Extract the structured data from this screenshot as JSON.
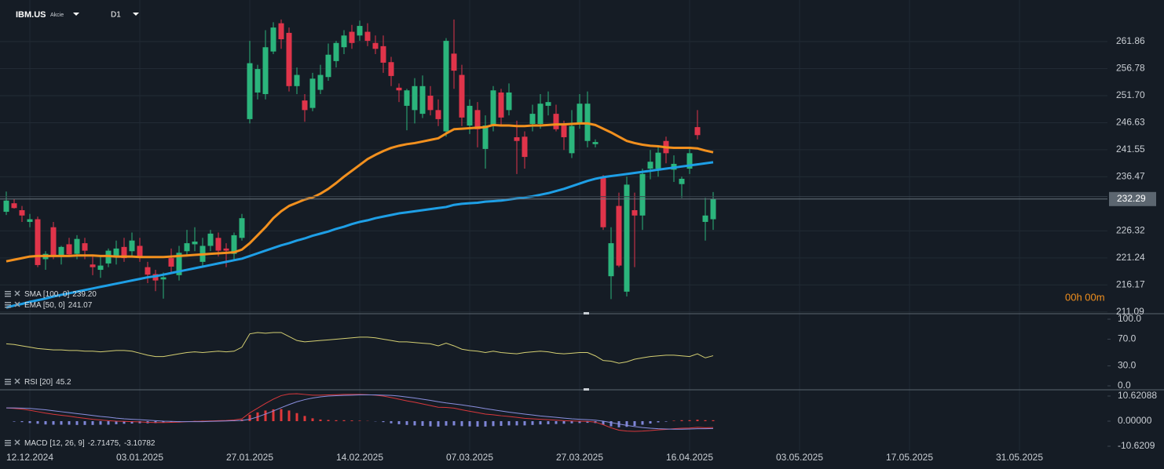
{
  "header": {
    "symbol": "IBM.US",
    "asset_type": "Akcie",
    "timeframe": "D1"
  },
  "countdown": "00h 00m",
  "chart_data": [
    {
      "type": "candlestick",
      "ylim": [
        210.76,
        269.67
      ],
      "yticks": [
        {
          "value": 211.09,
          "label": "211.09"
        },
        {
          "value": 216.17,
          "label": "216.17"
        },
        {
          "value": 221.24,
          "label": "221.24"
        },
        {
          "value": 226.32,
          "label": "226.32"
        },
        {
          "value": 236.47,
          "label": "236.47"
        },
        {
          "value": 241.55,
          "label": "241.55"
        },
        {
          "value": 246.63,
          "label": "246.63"
        },
        {
          "value": 251.7,
          "label": "251.70"
        },
        {
          "value": 256.78,
          "label": "256.78"
        },
        {
          "value": 261.86,
          "label": "261.86"
        }
      ],
      "grid": true,
      "up_color": "#2bb57c",
      "down_color": "#e0344a",
      "open": [
        229.9,
        231.5,
        230.2,
        228.0,
        228.5,
        221.0,
        227.0,
        221.5,
        223.8,
        222.0,
        224.0,
        220.0,
        219.0,
        220.2,
        221.5,
        223.3,
        222.5,
        223.5,
        219.5,
        218.2,
        217.2,
        221.2,
        218.0,
        222.5,
        223.8,
        220.5,
        223.5,
        225.0,
        223.0,
        222.0,
        225.0,
        247.3,
        252.3,
        252.0,
        260.0,
        265.3,
        263.5,
        253.5,
        250.8,
        249.4,
        252.8,
        255.2,
        258.2,
        260.8,
        263.7,
        263.0,
        263.7,
        261.6,
        261.0,
        258.0,
        253.2,
        249.8,
        249.0,
        248.3,
        251.7,
        249.0,
        245.0,
        259.6,
        255.6,
        246.1,
        249.0,
        241.7,
        246.1,
        252.3,
        249.0,
        243.9,
        244.0,
        246.4,
        246.4,
        249.8,
        248.3,
        246.1,
        240.9,
        246.4,
        243.2,
        242.6,
        236.5,
        217.8,
        231.0,
        214.9,
        230.2,
        229.2,
        238.0,
        238.0,
        243.2,
        237.8,
        235.1,
        238.0,
        245.8,
        228.0,
        228.5
      ],
      "high": [
        233.7,
        232.3,
        231.0,
        229.5,
        229.0,
        222.5,
        228.0,
        223.5,
        225.0,
        225.5,
        225.0,
        221.5,
        221.5,
        223.0,
        224.5,
        225.0,
        226.0,
        225.0,
        220.5,
        219.0,
        218.5,
        223.0,
        223.5,
        226.5,
        227.0,
        225.0,
        226.5,
        226.0,
        224.0,
        226.0,
        229.5,
        262.0,
        257.5,
        264.0,
        265.5,
        266.0,
        264.5,
        257.0,
        252.0,
        256.0,
        257.5,
        261.5,
        262.0,
        264.0,
        265.0,
        265.8,
        265.3,
        263.0,
        263.0,
        259.0,
        254.0,
        253.0,
        255.0,
        255.5,
        253.5,
        251.0,
        262.5,
        266.0,
        257.5,
        251.0,
        250.5,
        248.0,
        253.5,
        253.0,
        254.0,
        247.0,
        245.0,
        250.0,
        252.0,
        252.5,
        250.0,
        247.0,
        249.0,
        252.0,
        252.5,
        243.5,
        236.8,
        227.0,
        233.5,
        236.5,
        233.5,
        238.0,
        241.5,
        242.0,
        244.0,
        240.5,
        236.5,
        242.0,
        249.0,
        232.5,
        233.6
      ],
      "low": [
        229.3,
        230.5,
        228.0,
        227.0,
        219.5,
        219.0,
        221.0,
        220.0,
        221.5,
        221.0,
        221.0,
        218.0,
        217.5,
        219.5,
        220.0,
        220.5,
        221.5,
        220.5,
        216.5,
        215.0,
        213.6,
        218.5,
        217.0,
        221.5,
        222.5,
        219.5,
        222.5,
        221.5,
        219.5,
        221.0,
        224.5,
        246.5,
        251.0,
        251.0,
        259.5,
        260.5,
        252.5,
        252.0,
        246.8,
        248.8,
        252.0,
        254.5,
        257.0,
        259.5,
        260.5,
        262.0,
        261.0,
        259.5,
        256.0,
        253.5,
        250.5,
        245.2,
        246.5,
        247.5,
        248.0,
        246.0,
        244.0,
        253.0,
        246.0,
        244.5,
        242.0,
        238.0,
        245.0,
        246.0,
        248.0,
        237.0,
        238.0,
        245.0,
        245.5,
        248.0,
        245.0,
        241.5,
        240.0,
        245.5,
        242.0,
        242.0,
        226.5,
        213.5,
        219.5,
        214.0,
        219.5,
        226.5,
        236.0,
        236.5,
        239.0,
        235.5,
        232.5,
        237.0,
        243.5,
        224.5,
        226.5
      ],
      "close": [
        232.0,
        230.6,
        229.2,
        228.5,
        219.9,
        222.0,
        221.8,
        223.3,
        221.9,
        224.8,
        222.6,
        219.5,
        219.8,
        222.6,
        223.0,
        221.2,
        224.5,
        221.3,
        218.1,
        217.0,
        217.6,
        219.6,
        222.2,
        224.0,
        224.3,
        223.5,
        225.8,
        222.6,
        222.6,
        225.5,
        228.7,
        257.8,
        256.7,
        260.8,
        264.5,
        262.3,
        253.5,
        255.6,
        249.0,
        254.9,
        255.6,
        259.4,
        261.6,
        263.0,
        261.6,
        264.8,
        262.0,
        260.5,
        257.9,
        255.4,
        252.7,
        252.7,
        253.5,
        253.5,
        249.0,
        247.3,
        262.0,
        256.4,
        247.6,
        249.8,
        245.4,
        246.1,
        252.7,
        247.6,
        252.3,
        243.2,
        240.2,
        248.3,
        250.2,
        250.5,
        245.4,
        243.9,
        246.0,
        250.2,
        250.2,
        243.0,
        227.0,
        224.0,
        219.8,
        235.0,
        229.2,
        237.0,
        239.3,
        241.0,
        240.9,
        238.9,
        236.1,
        240.9,
        244.3,
        229.2,
        232.29
      ],
      "series": [
        {
          "name": "SMA [100, 0]",
          "color": "#1e9fe6",
          "legend_value": {
            "value": 239.2,
            "label": "239.20"
          },
          "values": [
            211.9,
            212.3,
            212.6,
            213.0,
            213.3,
            213.6,
            214.0,
            214.3,
            214.6,
            214.9,
            215.2,
            215.5,
            215.8,
            216.1,
            216.4,
            216.7,
            217.0,
            217.3,
            217.6,
            217.8,
            218.1,
            218.4,
            218.7,
            219.0,
            219.3,
            219.6,
            219.9,
            220.2,
            220.5,
            220.8,
            221.1,
            221.6,
            222.1,
            222.6,
            223.1,
            223.6,
            224.0,
            224.5,
            224.9,
            225.4,
            225.8,
            226.2,
            226.7,
            227.1,
            227.6,
            228.0,
            228.3,
            228.7,
            229.0,
            229.3,
            229.6,
            229.8,
            230.0,
            230.2,
            230.4,
            230.6,
            230.8,
            231.2,
            231.4,
            231.5,
            231.6,
            231.8,
            231.9,
            232.0,
            232.2,
            232.4,
            232.6,
            232.8,
            233.1,
            233.4,
            233.8,
            234.2,
            234.7,
            235.2,
            235.7,
            236.1,
            236.4,
            236.6,
            236.8,
            237.0,
            237.2,
            237.4,
            237.6,
            237.8,
            238.0,
            238.2,
            238.4,
            238.6,
            238.8,
            239.0,
            239.2
          ]
        },
        {
          "name": "EMA [50, 0]",
          "color": "#f2901e",
          "legend_value": 241.07,
          "values": [
            220.6,
            220.9,
            221.2,
            221.5,
            221.6,
            221.6,
            221.6,
            221.6,
            221.6,
            221.7,
            221.7,
            221.7,
            221.6,
            221.6,
            221.5,
            221.5,
            221.5,
            221.4,
            221.4,
            221.4,
            221.4,
            221.5,
            221.6,
            221.7,
            221.8,
            221.9,
            222.0,
            222.1,
            222.2,
            222.3,
            222.8,
            224.0,
            225.5,
            227.0,
            228.7,
            230.0,
            231.0,
            231.6,
            232.2,
            232.6,
            233.3,
            234.2,
            235.3,
            236.5,
            237.6,
            238.7,
            239.8,
            240.6,
            241.3,
            241.9,
            242.3,
            242.6,
            242.8,
            243.1,
            243.4,
            243.7,
            244.6,
            245.4,
            245.5,
            245.6,
            245.7,
            245.8,
            246.2,
            246.1,
            246.1,
            246.0,
            246.0,
            246.1,
            246.1,
            246.2,
            246.3,
            246.3,
            246.4,
            246.5,
            246.5,
            246.2,
            245.5,
            244.8,
            244.0,
            243.2,
            242.8,
            242.5,
            242.3,
            242.2,
            242.0,
            241.9,
            241.9,
            241.9,
            241.8,
            241.4,
            241.07
          ]
        }
      ]
    },
    {
      "type": "line",
      "ylim": [
        -5.9,
        108.2
      ],
      "yticks": [
        {
          "value": 0,
          "label": "0.0"
        },
        {
          "value": 30,
          "label": "30.0"
        },
        {
          "value": 70,
          "label": "70.0"
        },
        {
          "value": 100,
          "label": "100.0"
        }
      ],
      "series": [
        {
          "name": "RSI [20]",
          "color": "#d4cf72",
          "legend_value": 45.2,
          "values": [
            63,
            62,
            60,
            58,
            56,
            55,
            54,
            54,
            53,
            53,
            52,
            52,
            51,
            52,
            53,
            53,
            52,
            49,
            46,
            44,
            44,
            46,
            48,
            50,
            51,
            50,
            51,
            52,
            51,
            52,
            58,
            78,
            80,
            79,
            80,
            80,
            74,
            68,
            66,
            67,
            68,
            69,
            70,
            71,
            72,
            73,
            73,
            72,
            70,
            68,
            66,
            66,
            65,
            64,
            63,
            60,
            64,
            60,
            55,
            53,
            52,
            50,
            52,
            50,
            49,
            48,
            50,
            51,
            52,
            51,
            49,
            48,
            49,
            50,
            50,
            45,
            38,
            37,
            34,
            36,
            40,
            42,
            44,
            45,
            46,
            46,
            45,
            44,
            48,
            42,
            45.2
          ]
        }
      ]
    },
    {
      "type": "macd",
      "ylim": [
        -12.61,
        13.27
      ],
      "yticks": [
        {
          "value": -10.6209,
          "label": "-10.6209"
        },
        {
          "value": 0,
          "label": "0.00000"
        },
        {
          "value": 10.62088,
          "label": "10.62088"
        }
      ],
      "histogram_colors": [
        "#e0383a",
        "#7f86d8"
      ],
      "histogram": [
        0.0,
        -0.2,
        -0.4,
        -0.8,
        -1.1,
        -1.4,
        -1.5,
        -1.5,
        -1.5,
        -1.6,
        -1.6,
        -1.6,
        -1.5,
        -1.5,
        -1.3,
        -1.1,
        -1.0,
        -0.9,
        -0.9,
        -0.8,
        -0.6,
        -0.4,
        -0.2,
        0.0,
        0.1,
        0.2,
        0.2,
        0.2,
        0.2,
        0.3,
        0.7,
        2.7,
        3.7,
        4.5,
        5.0,
        5.1,
        4.5,
        3.4,
        2.2,
        1.2,
        0.7,
        0.5,
        0.4,
        0.4,
        0.3,
        0.2,
        0.1,
        -0.1,
        -0.4,
        -0.9,
        -1.3,
        -1.6,
        -1.8,
        -2.0,
        -2.2,
        -2.3,
        -1.9,
        -1.8,
        -2.1,
        -2.2,
        -2.3,
        -2.3,
        -2.1,
        -2.0,
        -1.8,
        -1.8,
        -1.8,
        -1.6,
        -1.4,
        -1.3,
        -1.2,
        -1.1,
        -0.9,
        -0.8,
        -0.7,
        -0.8,
        -1.5,
        -2.2,
        -2.6,
        -2.4,
        -2.0,
        -1.5,
        -1.0,
        -0.5,
        -0.2,
        0.2,
        0.4,
        0.4,
        0.6,
        0.4,
        0.39
      ],
      "series": [
        {
          "name": "MACD [12, 26, 9]",
          "color": "#d8383c",
          "legend_value": {
            "value": -2.71475,
            "label": "-2.71475,"
          },
          "values": [
            5.6,
            5.4,
            5.1,
            4.6,
            4.0,
            3.4,
            2.9,
            2.5,
            2.1,
            1.6,
            1.2,
            0.8,
            0.5,
            0.2,
            0.0,
            -0.1,
            -0.2,
            -0.3,
            -0.5,
            -0.6,
            -0.6,
            -0.5,
            -0.4,
            -0.2,
            -0.1,
            0.0,
            0.1,
            0.2,
            0.3,
            0.5,
            1.0,
            3.5,
            5.5,
            7.5,
            9.3,
            10.8,
            11.5,
            11.6,
            11.3,
            11.0,
            11.0,
            11.1,
            11.2,
            11.3,
            11.3,
            11.3,
            11.2,
            11.0,
            10.6,
            10.0,
            9.3,
            8.6,
            8.0,
            7.3,
            6.6,
            5.9,
            5.8,
            5.5,
            4.8,
            4.2,
            3.6,
            3.0,
            2.7,
            2.3,
            2.0,
            1.6,
            1.2,
            1.0,
            0.8,
            0.6,
            0.4,
            0.2,
            0.1,
            0.0,
            -0.1,
            -0.4,
            -1.5,
            -2.8,
            -3.8,
            -4.2,
            -4.3,
            -4.2,
            -4.0,
            -3.7,
            -3.5,
            -3.2,
            -3.0,
            -2.9,
            -2.6,
            -2.8,
            -2.71475
          ]
        },
        {
          "color": "#8a8fde",
          "legend_value": {
            "value": -3.10782,
            "label": "-3.10782"
          },
          "values": [
            5.6,
            5.6,
            5.5,
            5.4,
            5.1,
            4.8,
            4.4,
            4.0,
            3.6,
            3.2,
            2.8,
            2.4,
            2.0,
            1.7,
            1.3,
            1.0,
            0.8,
            0.6,
            0.4,
            0.2,
            0.0,
            -0.1,
            -0.2,
            -0.2,
            -0.2,
            -0.2,
            -0.1,
            0.0,
            0.1,
            0.2,
            0.3,
            0.8,
            1.8,
            3.0,
            4.3,
            5.7,
            7.0,
            8.2,
            9.1,
            9.8,
            10.3,
            10.6,
            10.8,
            10.9,
            11.0,
            11.1,
            11.1,
            11.1,
            11.0,
            10.9,
            10.6,
            10.2,
            9.8,
            9.3,
            8.8,
            8.2,
            7.7,
            7.3,
            6.9,
            6.4,
            5.9,
            5.3,
            4.8,
            4.3,
            3.8,
            3.4,
            3.0,
            2.6,
            2.2,
            1.9,
            1.6,
            1.3,
            1.0,
            0.8,
            0.6,
            0.4,
            0.0,
            -0.6,
            -1.2,
            -1.8,
            -2.3,
            -2.7,
            -3.0,
            -3.2,
            -3.3,
            -3.4,
            -3.4,
            -3.3,
            -3.2,
            -3.2,
            -3.10782
          ]
        }
      ],
      "x_labels": [
        "12.12.2024",
        "03.01.2025",
        "27.01.2025",
        "14.02.2025",
        "07.03.2025",
        "27.03.2025",
        "16.04.2025",
        "03.05.2025",
        "17.05.2025",
        "31.05.2025"
      ]
    }
  ]
}
